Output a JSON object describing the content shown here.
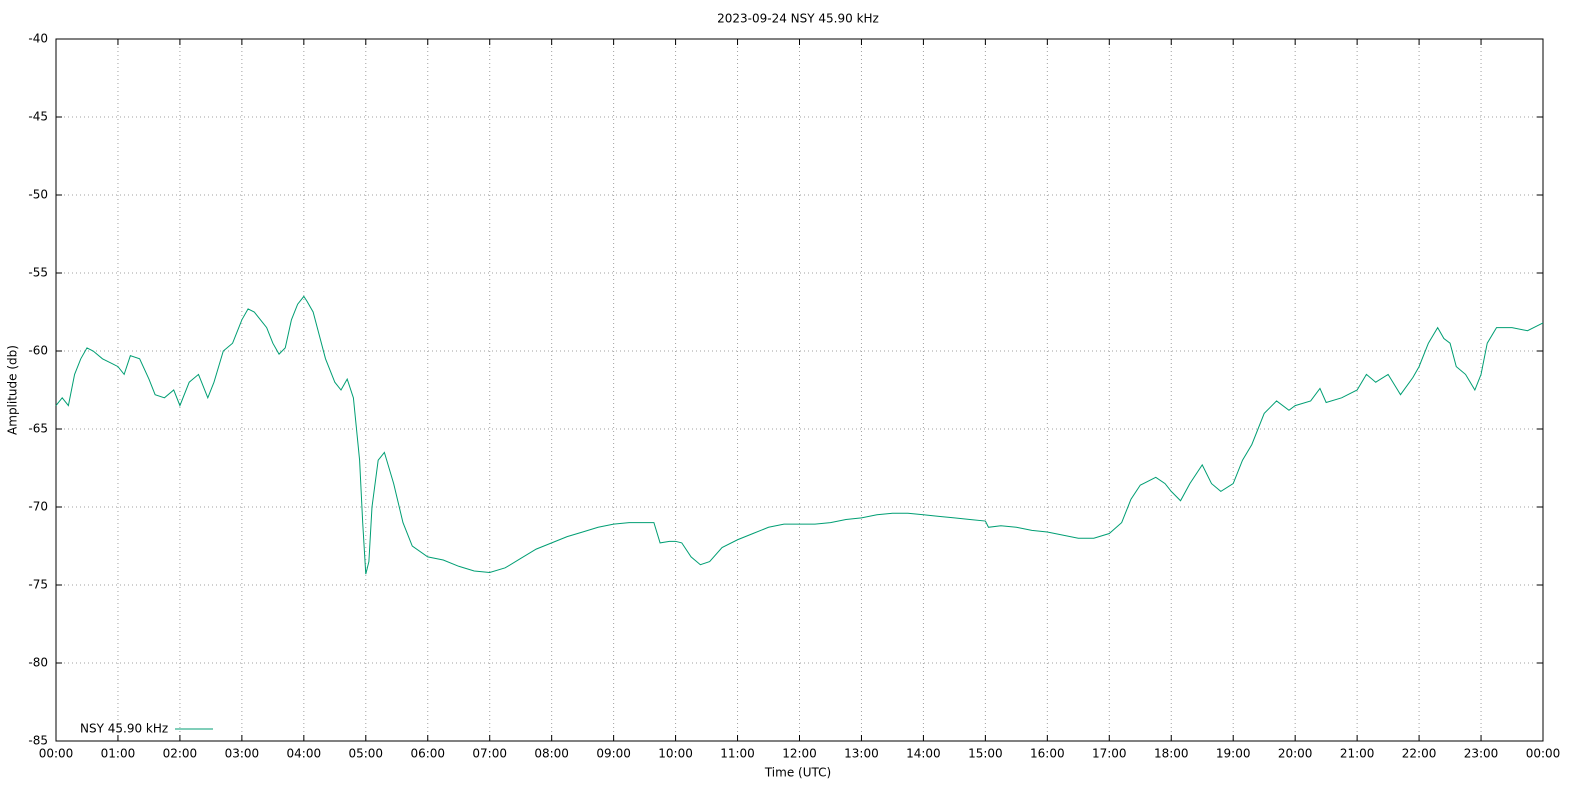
{
  "chart_data": {
    "type": "line",
    "title": "2023-09-24 NSY 45.90 kHz",
    "x_label": "Time (UTC)",
    "y_label": "Amplitude (db)",
    "xlim": [
      0,
      24
    ],
    "xticks": [
      {
        "value": 0,
        "label": "00:00"
      },
      {
        "value": 1,
        "label": "01:00"
      },
      {
        "value": 2,
        "label": "02:00"
      },
      {
        "value": 3,
        "label": "03:00"
      },
      {
        "value": 4,
        "label": "04:00"
      },
      {
        "value": 5,
        "label": "05:00"
      },
      {
        "value": 6,
        "label": "06:00"
      },
      {
        "value": 7,
        "label": "07:00"
      },
      {
        "value": 8,
        "label": "08:00"
      },
      {
        "value": 9,
        "label": "09:00"
      },
      {
        "value": 10,
        "label": "10:00"
      },
      {
        "value": 11,
        "label": "11:00"
      },
      {
        "value": 12,
        "label": "12:00"
      },
      {
        "value": 13,
        "label": "13:00"
      },
      {
        "value": 14,
        "label": "14:00"
      },
      {
        "value": 15,
        "label": "15:00"
      },
      {
        "value": 16,
        "label": "16:00"
      },
      {
        "value": 17,
        "label": "17:00"
      },
      {
        "value": 18,
        "label": "18:00"
      },
      {
        "value": 19,
        "label": "19:00"
      },
      {
        "value": 20,
        "label": "20:00"
      },
      {
        "value": 21,
        "label": "21:00"
      },
      {
        "value": 22,
        "label": "22:00"
      },
      {
        "value": 23,
        "label": "23:00"
      },
      {
        "value": 24,
        "label": "00:00"
      }
    ],
    "ylim": [
      -85,
      -40
    ],
    "yticks": [
      -85,
      -80,
      -75,
      -70,
      -65,
      -60,
      -55,
      -50,
      -45,
      -40
    ],
    "grid": true,
    "legend": "bottom-left",
    "x": [
      0,
      0.1,
      0.2,
      0.3,
      0.4,
      0.5,
      0.6,
      0.75,
      0.9,
      1.0,
      1.1,
      1.2,
      1.35,
      1.5,
      1.6,
      1.75,
      1.9,
      2.0,
      2.15,
      2.3,
      2.45,
      2.55,
      2.7,
      2.85,
      3.0,
      3.1,
      3.2,
      3.3,
      3.4,
      3.5,
      3.6,
      3.7,
      3.8,
      3.9,
      4.0,
      4.05,
      4.15,
      4.25,
      4.35,
      4.5,
      4.6,
      4.7,
      4.8,
      4.9,
      4.95,
      5.0,
      5.05,
      5.1,
      5.2,
      5.3,
      5.45,
      5.6,
      5.75,
      6.0,
      6.25,
      6.5,
      6.75,
      7.0,
      7.25,
      7.5,
      7.75,
      8.0,
      8.25,
      8.5,
      8.75,
      9.0,
      9.25,
      9.5,
      9.65,
      9.75,
      9.9,
      10.0,
      10.1,
      10.25,
      10.4,
      10.55,
      10.75,
      11.0,
      11.25,
      11.5,
      11.75,
      12.0,
      12.25,
      12.5,
      12.75,
      13.0,
      13.25,
      13.5,
      13.75,
      14.0,
      14.25,
      14.5,
      14.75,
      15.0,
      15.05,
      15.25,
      15.5,
      15.75,
      16.0,
      16.25,
      16.5,
      16.75,
      17.0,
      17.2,
      17.35,
      17.5,
      17.75,
      17.9,
      18.0,
      18.15,
      18.3,
      18.5,
      18.65,
      18.8,
      19.0,
      19.15,
      19.3,
      19.5,
      19.7,
      19.9,
      20.0,
      20.25,
      20.4,
      20.5,
      20.75,
      21.0,
      21.15,
      21.3,
      21.5,
      21.7,
      21.9,
      22.0,
      22.15,
      22.3,
      22.4,
      22.5,
      22.6,
      22.75,
      22.9,
      23.0,
      23.1,
      23.25,
      23.5,
      23.75,
      24.0
    ],
    "series": [
      {
        "name": "NSY 45.90 kHz",
        "color": "#009e73",
        "values": [
          -63.5,
          -63,
          -63.5,
          -61.5,
          -60.5,
          -59.8,
          -60,
          -60.5,
          -60.8,
          -61,
          -61.5,
          -60.3,
          -60.5,
          -61.8,
          -62.8,
          -63,
          -62.5,
          -63.5,
          -62,
          -61.5,
          -63,
          -62,
          -60,
          -59.5,
          -58,
          -57.3,
          -57.5,
          -58,
          -58.5,
          -59.5,
          -60.2,
          -59.8,
          -58,
          -57,
          -56.5,
          -56.8,
          -57.5,
          -59,
          -60.5,
          -62,
          -62.5,
          -61.8,
          -63,
          -67,
          -71,
          -74.3,
          -73.5,
          -70,
          -67,
          -66.5,
          -68.5,
          -71,
          -72.5,
          -73.2,
          -73.4,
          -73.8,
          -74.1,
          -74.2,
          -73.9,
          -73.3,
          -72.7,
          -72.3,
          -71.9,
          -71.6,
          -71.3,
          -71.1,
          -71,
          -71,
          -71,
          -72.3,
          -72.2,
          -72.2,
          -72.3,
          -73.2,
          -73.7,
          -73.5,
          -72.6,
          -72.1,
          -71.7,
          -71.3,
          -71.1,
          -71.1,
          -71.1,
          -71,
          -70.8,
          -70.7,
          -70.5,
          -70.4,
          -70.4,
          -70.5,
          -70.6,
          -70.7,
          -70.8,
          -70.9,
          -71.3,
          -71.2,
          -71.3,
          -71.5,
          -71.6,
          -71.8,
          -72,
          -72,
          -71.7,
          -71,
          -69.5,
          -68.6,
          -68.1,
          -68.5,
          -69,
          -69.6,
          -68.5,
          -67.3,
          -68.5,
          -69,
          -68.5,
          -67,
          -66,
          -64,
          -63.2,
          -63.8,
          -63.5,
          -63.2,
          -62.4,
          -63.3,
          -63,
          -62.5,
          -61.5,
          -62,
          -61.5,
          -62.8,
          -61.7,
          -61,
          -59.5,
          -58.5,
          -59.2,
          -59.5,
          -61,
          -61.5,
          -62.5,
          -61.5,
          -59.5,
          -58.5,
          -58.5,
          -58.7,
          -58.2
        ]
      }
    ]
  }
}
